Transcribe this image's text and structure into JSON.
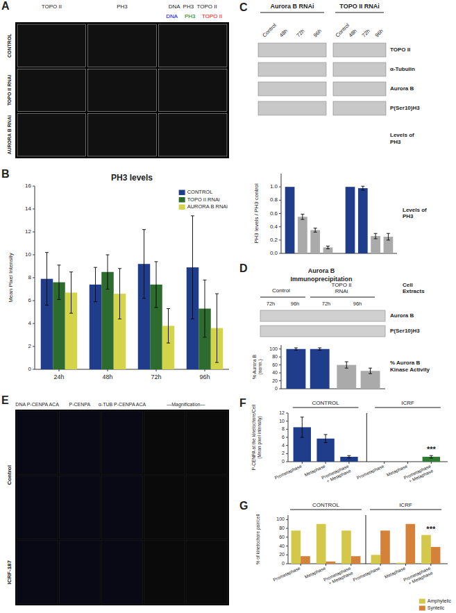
{
  "chart_data": [
    {
      "type": "image",
      "annotations": [
        "A",
        "TOPO II",
        "PH3",
        "DNA  PH3  TOPO II",
        {
          "text": "DNA",
          "color": "blue"
        },
        {
          "text": "PH3",
          "color": "green"
        },
        {
          "text": "TOPO II",
          "color": "red"
        },
        "CONTROL",
        "TOPO II RNAi",
        "AURORA B RNAi"
      ]
    },
    {
      "type": "bar",
      "title": "PH3 levels",
      "ylabel": "Mean Pixel Intensity",
      "categories": [
        "24h",
        "48h",
        "72h",
        "96h"
      ],
      "series": [
        {
          "name": "CONTROL",
          "color": "#1f3d8a",
          "values": [
            7.9,
            7.4,
            9.2,
            8.9
          ],
          "errors": [
            2.3,
            1.5,
            3.0,
            4.5
          ]
        },
        {
          "name": "TOPO II RNAi",
          "color": "#2e6b2e",
          "values": [
            7.6,
            8.5,
            7.4,
            5.3
          ],
          "errors": [
            1.5,
            1.5,
            2.0,
            2.5
          ]
        },
        {
          "name": "AURORA B RNAi",
          "color": "#d4d44a",
          "values": [
            6.7,
            6.6,
            3.8,
            3.6
          ],
          "errors": [
            1.8,
            2.2,
            1.5,
            3.0
          ]
        }
      ],
      "ylim": [
        0,
        16
      ],
      "yticks": [
        0,
        2,
        4,
        6,
        8,
        10,
        12,
        14,
        16
      ],
      "legend": "upper right",
      "annotations": [
        "B"
      ]
    },
    {
      "type": "blot",
      "annotations": [
        "C",
        "Aurora B RNAi",
        "TOPO II RNAi",
        "Control",
        "48h",
        "72h",
        "96h",
        "Control",
        "48h",
        "72h",
        "96h",
        "TOPO II",
        "α-Tubulin",
        "Aurora B",
        "P(Ser10)H3",
        "Levels of\nPH3"
      ]
    },
    {
      "type": "bar",
      "ylabel": "PH3 levels / PH3 control",
      "categories": [
        null,
        null,
        null,
        null,
        null,
        null,
        null,
        null
      ],
      "values": [
        1.0,
        0.55,
        0.35,
        0.09,
        1.0,
        0.98,
        0.26,
        0.25
      ],
      "errors": [
        0.0,
        0.04,
        0.03,
        0.02,
        0.0,
        0.03,
        0.04,
        0.05
      ],
      "colors": [
        "#1f3d8a",
        "#aaaaaa",
        "#aaaaaa",
        "#aaaaaa",
        "#1f3d8a",
        "#1f3d8a",
        "#aaaaaa",
        "#aaaaaa"
      ],
      "ylim": [
        0,
        1.2
      ],
      "yticks": [
        {
          "value": 0,
          "label": "0.0"
        },
        0.2,
        0.4,
        0.6,
        0.8,
        {
          "value": 1.0,
          "label": "1.0"
        }
      ],
      "tick_labels": "y",
      "annotations": [
        "Levels of\nPH3"
      ]
    },
    {
      "type": "blot",
      "annotations": [
        "D",
        "Aurora B",
        "Immunoprecipitation",
        "Control",
        "TOPO II\nRNAi",
        "72h",
        "96h",
        "72h",
        "96h",
        "Cell\nExtracts",
        "Aurora B",
        "P(Ser10)H3",
        "% Aurora B\nKinase Activity"
      ]
    },
    {
      "type": "bar",
      "ylabel": "% Aurora B\n(norm.)",
      "categories": [
        null,
        null,
        null,
        null
      ],
      "values": [
        100,
        100,
        60,
        45
      ],
      "errors": [
        3,
        3,
        8,
        7
      ],
      "colors": [
        "#1f3d8a",
        "#1f3d8a",
        "#aaaaaa",
        "#aaaaaa"
      ],
      "ylim": [
        0,
        110
      ],
      "yticks": [
        0,
        20,
        40,
        60,
        80,
        100
      ],
      "tick_labels": "y"
    },
    {
      "type": "image",
      "annotations": [
        "E",
        "DNA P-CENPA ACA",
        "P-CENPA",
        "α-TUB P-CENPA ACA",
        "—Magnification—",
        "Control",
        "ICRF-187"
      ]
    },
    {
      "type": "bar",
      "ylabel": "P-CENPA at the kinetochore/Cell\n(Mean pixel intensity)",
      "categories": [
        "Prometaphase",
        "Metaphase",
        "Prometaphase\n+ Metaphase",
        "Prometaphase",
        "Metaphase",
        "Prometaphase\n+ Metaphase"
      ],
      "values": [
        8.5,
        5.7,
        1.2,
        0,
        0,
        1.2
      ],
      "errors": [
        2.5,
        1.0,
        0.3,
        0,
        0,
        0.3
      ],
      "colors": [
        "#1f3d8a",
        "#1f3d8a",
        "#1f3d8a",
        "#2e7d32",
        "#2e7d32",
        "#2e7d32"
      ],
      "ylim": [
        0,
        12
      ],
      "yticks": [
        0,
        2,
        4,
        6,
        8,
        10,
        12
      ],
      "annotations": [
        "F",
        "CONTROL",
        "ICRF",
        "***"
      ]
    },
    {
      "type": "bar",
      "ylabel": "% of kinetochore pair/cell",
      "categories": [
        "Prometaphase",
        "Metaphase",
        "Prometaphase\n+ Metaphase",
        "Prometaphase",
        "Metaphase",
        "Prometaphase\n+ Metaphase"
      ],
      "series": [
        {
          "name": "Amphytelic",
          "color": "#d4c84a",
          "values": [
            75,
            90,
            75,
            20,
            2,
            65
          ]
        },
        {
          "name": "Syntelic",
          "color": "#d4823a",
          "values": [
            17,
            5,
            17,
            75,
            90,
            38
          ]
        }
      ],
      "ylim": [
        0,
        110
      ],
      "yticks": [
        0,
        20,
        40,
        60,
        80,
        100
      ],
      "legend": "lower right",
      "annotations": [
        "G",
        "CONTROL",
        "ICRF",
        "***"
      ]
    }
  ]
}
